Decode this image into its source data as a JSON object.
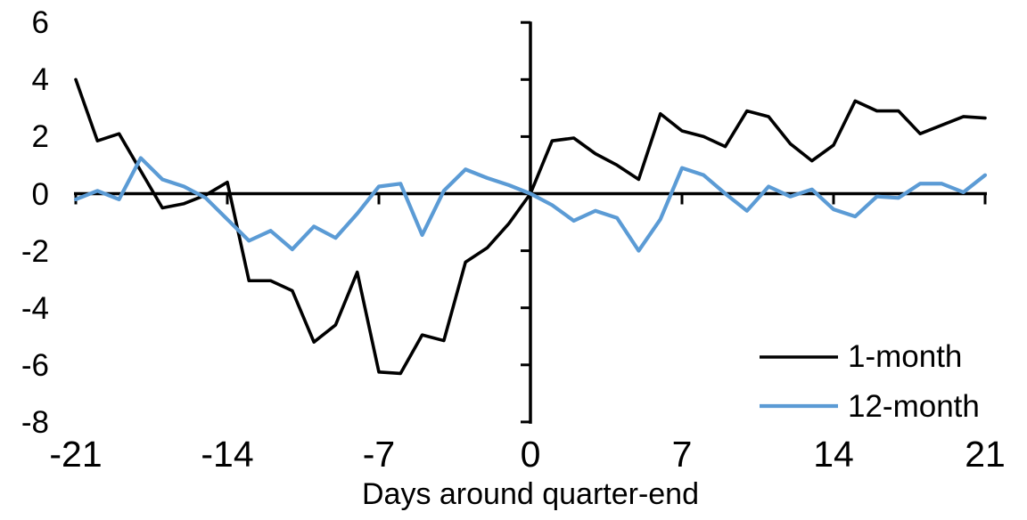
{
  "chart_data": {
    "type": "line",
    "title": "",
    "xlabel": "Days around quarter-end",
    "ylabel": "",
    "x": [
      -21,
      -20,
      -19,
      -18,
      -17,
      -16,
      -15,
      -14,
      -13,
      -12,
      -11,
      -10,
      -9,
      -8,
      -7,
      -6,
      -5,
      -4,
      -3,
      -2,
      -1,
      0,
      1,
      2,
      3,
      4,
      5,
      6,
      7,
      8,
      9,
      10,
      11,
      12,
      13,
      14,
      15,
      16,
      17,
      18,
      19,
      20,
      21
    ],
    "series": [
      {
        "name": "1-month",
        "color": "#000000",
        "values": [
          4.0,
          1.85,
          2.1,
          0.8,
          -0.5,
          -0.35,
          -0.05,
          0.4,
          -3.05,
          -3.05,
          -3.4,
          -5.2,
          -4.6,
          -2.75,
          -6.25,
          -6.3,
          -4.95,
          -5.15,
          -2.4,
          -1.9,
          -1.05,
          0.0,
          1.85,
          1.95,
          1.4,
          1.0,
          0.5,
          2.8,
          2.2,
          2.0,
          1.65,
          2.9,
          2.7,
          1.75,
          1.15,
          1.7,
          3.25,
          2.9,
          2.9,
          2.1,
          2.4,
          2.7,
          2.65
        ]
      },
      {
        "name": "12-month",
        "color": "#5B9BD5",
        "values": [
          -0.2,
          0.1,
          -0.2,
          1.25,
          0.5,
          0.25,
          -0.15,
          -0.9,
          -1.65,
          -1.3,
          -1.95,
          -1.15,
          -1.55,
          -0.7,
          0.25,
          0.35,
          -1.45,
          0.1,
          0.85,
          0.55,
          0.3,
          0.0,
          -0.4,
          -0.95,
          -0.6,
          -0.85,
          -2.0,
          -0.9,
          0.9,
          0.65,
          0.0,
          -0.6,
          0.25,
          -0.1,
          0.15,
          -0.55,
          -0.8,
          -0.1,
          -0.15,
          0.35,
          0.35,
          0.05,
          0.65
        ]
      }
    ],
    "x_ticks": [
      -21,
      -14,
      -7,
      0,
      7,
      14,
      21
    ],
    "y_ticks": [
      6,
      4,
      2,
      0,
      -2,
      -4,
      -6,
      -8
    ],
    "xlim": [
      -21,
      21
    ],
    "ylim": [
      -8,
      6
    ],
    "grid": false,
    "legend_position": "bottom-right",
    "axis_color": "#000000"
  }
}
